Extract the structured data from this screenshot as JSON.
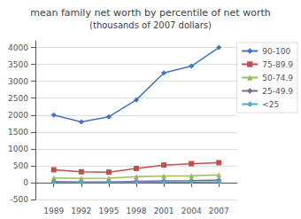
{
  "chart_data": {
    "type": "line",
    "title": "mean family net worth by percentile of net worth",
    "subtitle": "(thousands of 2007 dollars)",
    "x": [
      1989,
      1992,
      1995,
      1998,
      2001,
      2004,
      2007
    ],
    "series": [
      {
        "name": "90-100",
        "color": "#4472C4",
        "marker": "diamond",
        "values": [
          2000,
          1800,
          1950,
          2450,
          3250,
          3450,
          4000
        ]
      },
      {
        "name": "75-89.9",
        "color": "#C0504D",
        "marker": "square",
        "values": [
          380,
          320,
          310,
          420,
          520,
          560,
          590
        ]
      },
      {
        "name": "50-74.9",
        "color": "#9BBB59",
        "marker": "triangle",
        "values": [
          140,
          125,
          130,
          175,
          195,
          200,
          230
        ]
      },
      {
        "name": "25-49.9",
        "color": "#8064A2",
        "marker": "diamond",
        "values": [
          30,
          20,
          20,
          35,
          50,
          55,
          75
        ]
      },
      {
        "name": "<25",
        "color": "#4BACC6",
        "marker": "diamond",
        "values": [
          15,
          10,
          10,
          15,
          20,
          20,
          25
        ]
      }
    ],
    "xlim": [
      1987,
      2009
    ],
    "xticks": [
      1989,
      1992,
      1995,
      1998,
      2001,
      2004,
      2007
    ],
    "ylim": [
      -500,
      4200
    ],
    "yticks": [
      -500,
      0,
      500,
      1000,
      1500,
      2000,
      2500,
      3000,
      3500,
      4000
    ],
    "grid": true,
    "legend": "upper right"
  }
}
